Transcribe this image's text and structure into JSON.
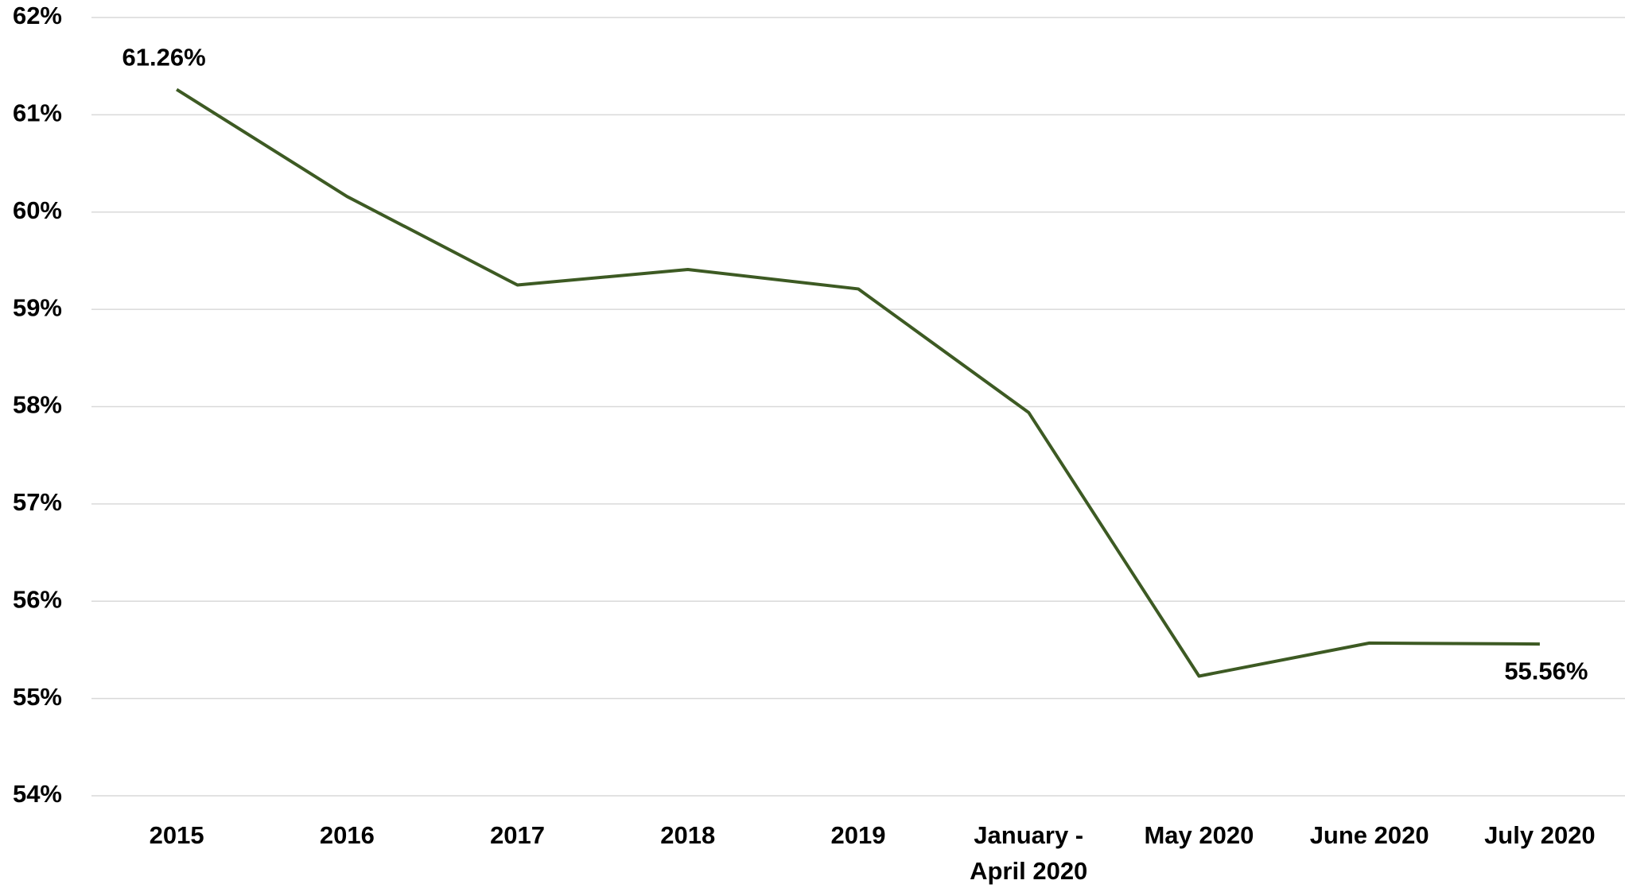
{
  "chart_data": {
    "type": "line",
    "categories": [
      "2015",
      "2016",
      "2017",
      "2018",
      "2019",
      "January - April 2020",
      "May 2020",
      "June 2020",
      "July 2020"
    ],
    "series": [
      {
        "name": null,
        "color": "#3d5a23",
        "values": [
          61.26,
          60.16,
          59.25,
          59.41,
          59.21,
          57.94,
          55.23,
          55.57,
          55.56
        ],
        "value_labels": [
          "61.26%",
          null,
          null,
          null,
          null,
          null,
          null,
          null,
          "55.56%"
        ]
      }
    ],
    "ylim": [
      54,
      62
    ],
    "yticks": [
      {
        "value": 54,
        "label": "54%"
      },
      {
        "value": 55,
        "label": "55%"
      },
      {
        "value": 56,
        "label": "56%"
      },
      {
        "value": 57,
        "label": "57%"
      },
      {
        "value": 58,
        "label": "58%"
      },
      {
        "value": 59,
        "label": "59%"
      },
      {
        "value": 60,
        "label": "60%"
      },
      {
        "value": 61,
        "label": "61%"
      },
      {
        "value": 62,
        "label": "62%"
      }
    ],
    "grid": true
  }
}
